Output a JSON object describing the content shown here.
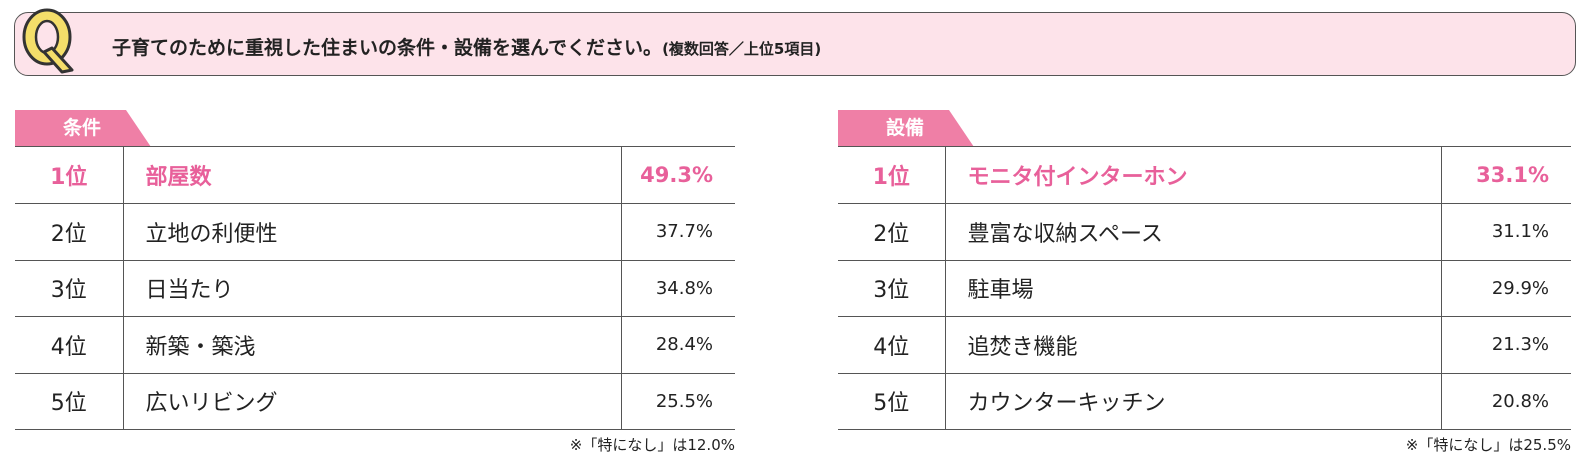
{
  "question": {
    "badge": "Q",
    "text": "子育てのために重視した住まいの条件・設備を選んでください。",
    "note": "(複数回答／上位5項目)",
    "colors": {
      "bar_bg": "#fde3ea",
      "badge_fill": "#f4de6a"
    }
  },
  "conditions": {
    "tab": "条件",
    "rows": [
      {
        "rank": "1位",
        "name": "部屋数",
        "value": "49.3%"
      },
      {
        "rank": "2位",
        "name": "立地の利便性",
        "value": "37.7%"
      },
      {
        "rank": "3位",
        "name": "日当たり",
        "value": "34.8%"
      },
      {
        "rank": "4位",
        "name": "新築・築浅",
        "value": "28.4%"
      },
      {
        "rank": "5位",
        "name": "広いリビング",
        "value": "25.5%"
      }
    ],
    "footnote": "※「特になし」は12.0%"
  },
  "equipment": {
    "tab": "設備",
    "rows": [
      {
        "rank": "1位",
        "name": "モニタ付インターホン",
        "value": "33.1%"
      },
      {
        "rank": "2位",
        "name": "豊富な収納スペース",
        "value": "31.1%"
      },
      {
        "rank": "3位",
        "name": "駐車場",
        "value": "29.9%"
      },
      {
        "rank": "4位",
        "name": "追焚き機能",
        "value": "21.3%"
      },
      {
        "rank": "5位",
        "name": "カウンターキッチン",
        "value": "20.8%"
      }
    ],
    "footnote": "※「特になし」は25.5%"
  },
  "accent_color": "#e8609a",
  "tab_color": "#ef7fa6"
}
